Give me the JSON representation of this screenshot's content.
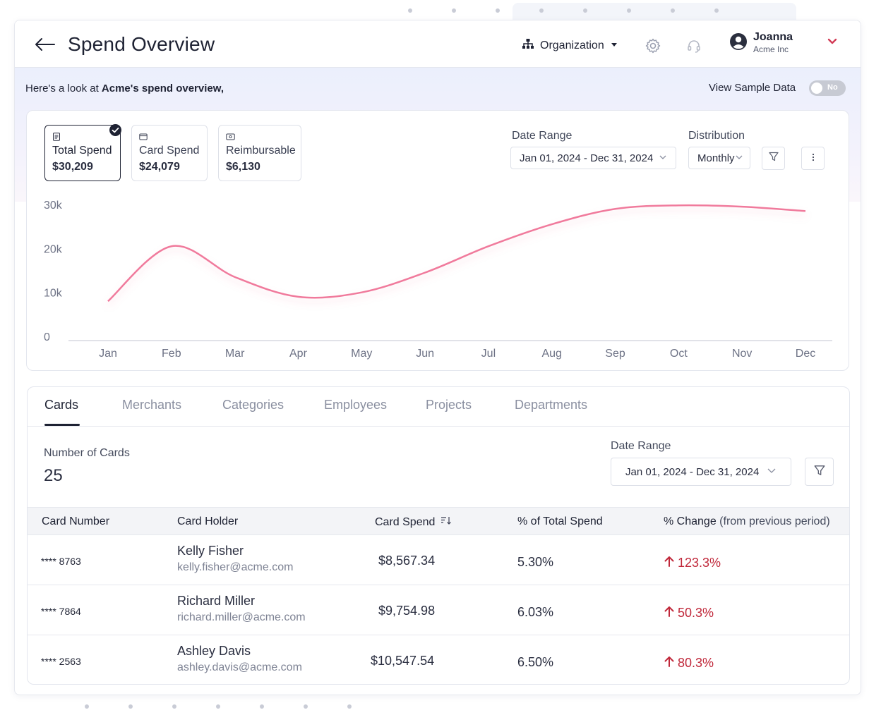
{
  "header": {
    "title": "Spend Overview",
    "org_label": "Organization",
    "user_name": "Joanna",
    "user_org": "Acme Inc"
  },
  "banner": {
    "prefix": "Here's a look at ",
    "company": "Acme's spend overview,",
    "sample_label": "View Sample Data",
    "toggle_label": "No"
  },
  "metrics": [
    {
      "label": "Total Spend",
      "value": "$30,209"
    },
    {
      "label": "Card Spend",
      "value": "$24,079"
    },
    {
      "label": "Reimbursable",
      "value": "$6,130"
    }
  ],
  "filters": {
    "date_range_label": "Date Range",
    "date_range_value": "Jan 01, 2024 - Dec 31, 2024",
    "distribution_label": "Distribution",
    "distribution_value": "Monthly"
  },
  "chart_data": {
    "type": "line",
    "title": "",
    "xlabel": "",
    "ylabel": "",
    "categories": [
      "Jan",
      "Feb",
      "Mar",
      "Apr",
      "May",
      "Jun",
      "Jul",
      "Aug",
      "Sep",
      "Oct",
      "Nov",
      "Dec"
    ],
    "y_ticks": [
      "0",
      "10k",
      "20k",
      "30k"
    ],
    "ylim": [
      0,
      30000
    ],
    "series": [
      {
        "name": "Total Spend",
        "values": [
          8000,
          20500,
          13500,
          9000,
          10000,
          14500,
          20500,
          25500,
          29000,
          29800,
          29500,
          28500
        ]
      }
    ],
    "color": "#f07a9c"
  },
  "table": {
    "tabs": [
      "Cards",
      "Merchants",
      "Categories",
      "Employees",
      "Projects",
      "Departments"
    ],
    "count_label": "Number of Cards",
    "count_value": "25",
    "date_range_label": "Date Range",
    "date_range_value": "Jan 01, 2024 - Dec 31, 2024",
    "columns": {
      "card_number": "Card Number",
      "card_holder": "Card Holder",
      "card_spend": "Card Spend",
      "pct_total": "% of Total Spend",
      "pct_change": "% Change",
      "pct_change_sub": "(from previous period)"
    },
    "rows": [
      {
        "card": "**** 8763",
        "name": "Kelly Fisher",
        "email": "kelly.fisher@acme.com",
        "spend": "$8,567.34",
        "pct": "5.30%",
        "change": "123.3%"
      },
      {
        "card": "**** 7864",
        "name": "Richard Miller",
        "email": "richard.miller@acme.com",
        "spend": "$9,754.98",
        "pct": "6.03%",
        "change": "50.3%"
      },
      {
        "card": "**** 2563",
        "name": "Ashley Davis",
        "email": "ashley.davis@acme.com",
        "spend": "$10,547.54",
        "pct": "6.50%",
        "change": "80.3%"
      }
    ]
  }
}
